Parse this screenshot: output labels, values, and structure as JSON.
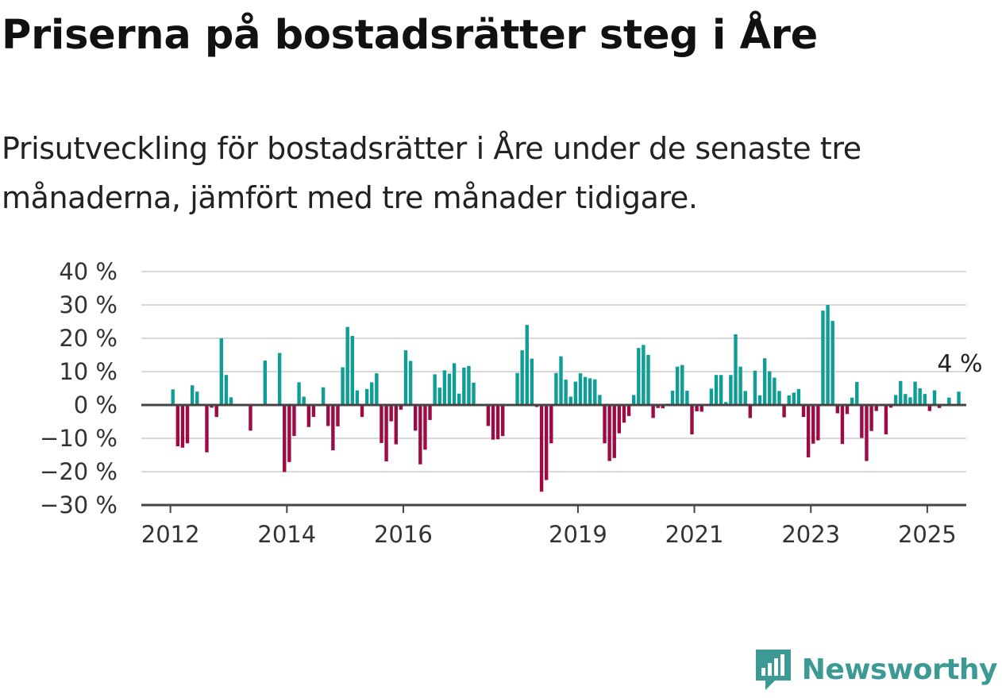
{
  "title": "Priserna på bostadsrätter steg i Åre",
  "subtitle": "Prisutveckling för bostadsrätter i Åre under de senaste tre månaderna, jämfört med tre månader tidigare.",
  "logo_text": "Newsworthy",
  "colors": {
    "positive": "#0f9e96",
    "negative": "#9c0b44",
    "grid": "#d9d9d9",
    "axis": "#444444",
    "logo": "#3c9a94"
  },
  "chart_data": {
    "type": "bar",
    "ylim": [
      -30,
      40
    ],
    "yticks": [
      40,
      30,
      20,
      10,
      0,
      -10,
      -20,
      -30
    ],
    "ytick_labels": [
      "40 %",
      "30 %",
      "20 %",
      "10 %",
      "0 %",
      "−10 %",
      "−20 %",
      "−30 %"
    ],
    "xticks": [
      2012,
      2014,
      2016,
      2019,
      2021,
      2023,
      2025
    ],
    "xtick_labels": [
      "2012",
      "2014",
      "2016",
      "2019",
      "2021",
      "2023",
      "2025"
    ],
    "x_start": 2011.5,
    "x_end": 2025.67,
    "step": 0.08333,
    "annotation": "4 %",
    "values": [
      0,
      0,
      0,
      0,
      0,
      0,
      4.7,
      -12.4,
      -12.8,
      -11.5,
      5.9,
      4,
      0,
      -14.2,
      -0.8,
      -3.6,
      20,
      9,
      2.3,
      0,
      0,
      0,
      -7.7,
      0,
      0,
      13.3,
      0,
      0,
      15.6,
      -20.1,
      -17.1,
      -9.3,
      6.8,
      2.5,
      -6.6,
      -3.6,
      0,
      5.3,
      -6.3,
      -13.6,
      -6.4,
      11.3,
      23.4,
      20.7,
      4.4,
      -3.6,
      4.8,
      6.8,
      9.5,
      -11.4,
      -16.9,
      -4.9,
      -11.8,
      -1.4,
      16.4,
      13.2,
      -7.7,
      -17.8,
      -13.4,
      -4.5,
      9.2,
      5.2,
      10.4,
      9.4,
      12.5,
      3.4,
      11.2,
      11.7,
      6.7,
      0,
      0,
      -6.3,
      -10.4,
      -10.3,
      -9.3,
      0,
      0,
      9.6,
      16.4,
      24,
      13.9,
      -0.6,
      -26,
      -22.5,
      -11.5,
      9.6,
      14.6,
      7.6,
      2.5,
      7,
      9.5,
      8.4,
      8,
      7.7,
      3,
      -11.5,
      -16.8,
      -15.9,
      -8.5,
      -5.3,
      -3.3,
      3,
      17.1,
      18,
      15,
      -3.9,
      -0.9,
      -1,
      0.4,
      4.3,
      11.5,
      12,
      4.3,
      -8.8,
      -1.9,
      -2,
      0,
      4.9,
      9,
      9,
      0.9,
      9,
      21.2,
      11.5,
      4.2,
      -3.9,
      10.3,
      2.9,
      14,
      10.1,
      8.2,
      4.2,
      -3.7,
      2.9,
      3.7,
      4.8,
      -3.6,
      -15.7,
      -11.6,
      -10.6,
      28.3,
      30,
      25.2,
      -2.5,
      -11.7,
      -2.7,
      2.2,
      6.9,
      -9.9,
      -16.8,
      -7.8,
      -1.8,
      0,
      -8.8,
      -0.8,
      3,
      7.2,
      3.3,
      2.3,
      7,
      5,
      3.3,
      -1.8,
      4.4,
      -0.9,
      0,
      2.2,
      0,
      4
    ]
  }
}
